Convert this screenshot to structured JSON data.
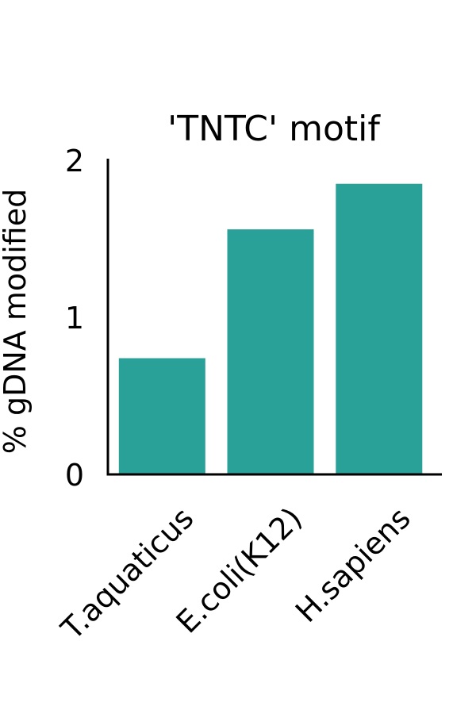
{
  "chart_data": {
    "type": "bar",
    "title": "'TNTC' motif",
    "xlabel": "",
    "ylabel": "% gDNA modified",
    "categories": [
      "T.aquaticus",
      "E.coli(K12)",
      "H.sapiens"
    ],
    "values": [
      0.74,
      1.56,
      1.85
    ],
    "ylim": [
      0,
      2
    ],
    "yticks": [
      "0",
      "1",
      "2"
    ],
    "bar_color": "#2aa198",
    "grid": false,
    "legend": "none"
  }
}
